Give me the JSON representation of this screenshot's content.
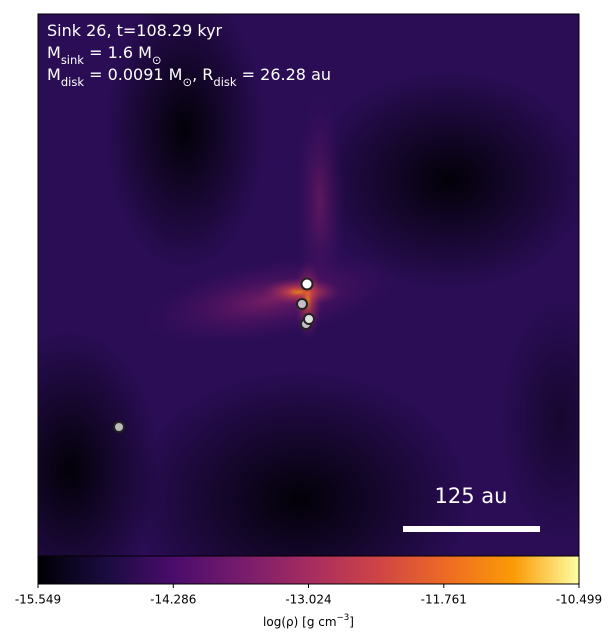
{
  "chart_data": {
    "type": "colormap",
    "annotations": [
      [
        {
          "text": "Sink 26, t=108.29 kyr"
        }
      ],
      [
        {
          "text": "M"
        },
        {
          "sub": "sink"
        },
        {
          "text": " = 1.6 M"
        },
        {
          "sub": "⊙"
        }
      ],
      [
        {
          "text": "M"
        },
        {
          "sub": "disk"
        },
        {
          "text": " = 0.0091 M"
        },
        {
          "sub": "⊙"
        },
        {
          "text": ", R"
        },
        {
          "sub": "disk"
        },
        {
          "text": " = 26.28 au"
        }
      ]
    ],
    "scale_bar": "125 au",
    "colorbar": {
      "label": [
        {
          "text": "log(ρ) [g cm"
        },
        {
          "sup": "−3"
        },
        {
          "text": "]"
        }
      ],
      "lim": [
        -15.549,
        -10.499
      ],
      "ticks": [
        -15.549,
        -14.286,
        -13.024,
        -11.761,
        -10.499
      ],
      "colormap": "inferno"
    }
  }
}
